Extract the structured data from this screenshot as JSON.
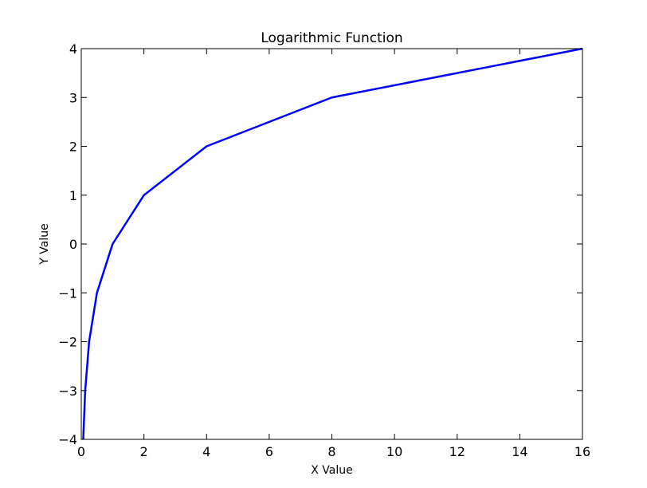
{
  "chart_data": {
    "type": "line",
    "title": "Logarithmic Function",
    "xlabel": "X Value",
    "ylabel": "Y Value",
    "xlim": [
      0,
      16
    ],
    "ylim": [
      -4,
      4
    ],
    "xticks": [
      0,
      2,
      4,
      6,
      8,
      10,
      12,
      14,
      16
    ],
    "yticks": [
      -4,
      -3,
      -2,
      -1,
      0,
      1,
      2,
      3,
      4
    ],
    "xtick_labels": [
      "0",
      "2",
      "4",
      "6",
      "8",
      "10",
      "12",
      "14",
      "16"
    ],
    "ytick_labels": [
      "−4",
      "−3",
      "−2",
      "−1",
      "0",
      "1",
      "2",
      "3",
      "4"
    ],
    "grid": false,
    "series": [
      {
        "color": "#0000ff",
        "x": [
          0.0625,
          0.125,
          0.25,
          0.5,
          1,
          2,
          4,
          8,
          16
        ],
        "y": [
          -4,
          -3,
          -2,
          -1,
          0,
          1,
          2,
          3,
          4
        ]
      }
    ]
  }
}
